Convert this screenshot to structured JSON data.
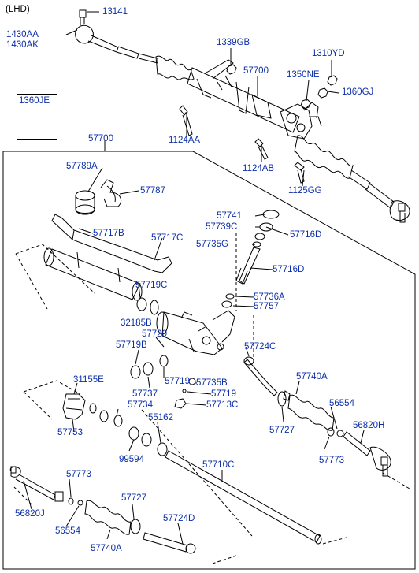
{
  "header": {
    "variant": "(LHD)"
  },
  "colors": {
    "label": "#0c2fa8",
    "line": "#000000",
    "background": "#ffffff"
  },
  "inset": {
    "code": "1360JE"
  },
  "assembly": {
    "code": "57700"
  },
  "top_labels": {
    "a13141": "13141",
    "a1430AA": "1430AA",
    "a1430AK": "1430AK",
    "a1339GB": "1339GB",
    "a1310YD": "1310YD",
    "a57700": "57700",
    "a1350NE": "1350NE",
    "a1360GJ": "1360GJ",
    "a1124AA": "1124AA",
    "a1124AB": "1124AB",
    "a1125GG": "1125GG"
  },
  "frame_labels": {
    "a57789A": "57789A",
    "a57787": "57787",
    "a57741": "57741",
    "a57739C": "57739C",
    "a57716D1": "57716D",
    "a57735G": "57735G",
    "a57717B": "57717B",
    "a57717C": "57717C",
    "a57716D2": "57716D",
    "a57719C": "57719C",
    "a57736A": "57736A",
    "a57757": "57757",
    "a32185B": "32185B",
    "a57720": "57720",
    "a57719B": "57719B",
    "a57724C": "57724C",
    "a57719a": "57719",
    "a57735B": "57735B",
    "a57737": "57737",
    "a57719b": "57719",
    "a31155E": "31155E",
    "a57734": "57734",
    "a57713C": "57713C",
    "a57740A1": "57740A",
    "a56554a": "56554",
    "a55162": "55162",
    "a56820H": "56820H",
    "a57727a": "57727",
    "a57753": "57753",
    "a57773a": "57773",
    "a99594": "99594",
    "a57710C": "57710C",
    "a57773b": "57773",
    "a57727b": "57727",
    "a56820J": "56820J",
    "a57724D": "57724D",
    "a56554b": "56554",
    "a57740A2": "57740A"
  }
}
